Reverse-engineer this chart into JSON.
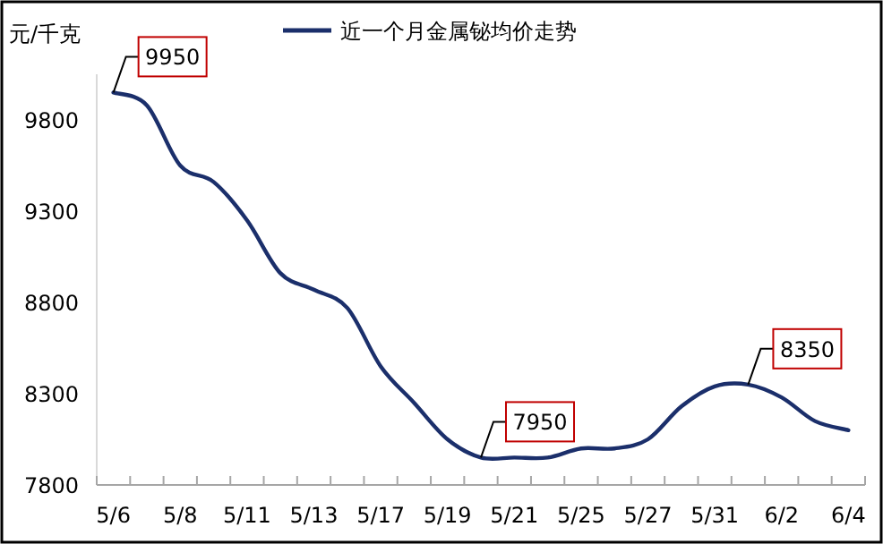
{
  "chart_data": {
    "type": "line",
    "ylabel": "元/千克",
    "categories": [
      "5/6",
      null,
      "5/8",
      null,
      "5/11",
      null,
      "5/13",
      null,
      "5/17",
      null,
      "5/19",
      null,
      "5/21",
      null,
      "5/25",
      null,
      "5/27",
      null,
      "5/31",
      null,
      "6/2",
      null,
      "6/4"
    ],
    "series": [
      {
        "name": "近一个月金属铋均价走势",
        "color": "#1b2f6b",
        "values": [
          9950,
          9880,
          9550,
          9460,
          9250,
          8960,
          8870,
          8770,
          8450,
          8250,
          8050,
          7950,
          7950,
          7950,
          8000,
          8000,
          8050,
          8230,
          8340,
          8350,
          8280,
          8150,
          8100
        ],
        "value_labels": [
          "9950",
          null,
          null,
          null,
          null,
          null,
          null,
          null,
          null,
          null,
          null,
          "7950",
          null,
          null,
          null,
          null,
          null,
          null,
          null,
          "8350",
          null,
          null,
          null
        ]
      }
    ],
    "ylim": [
      7800,
      10050
    ],
    "yticks": [
      7800,
      8300,
      8800,
      9300,
      9800
    ],
    "legend": "top",
    "grid": false,
    "marker": "none",
    "line_style": "solid"
  }
}
